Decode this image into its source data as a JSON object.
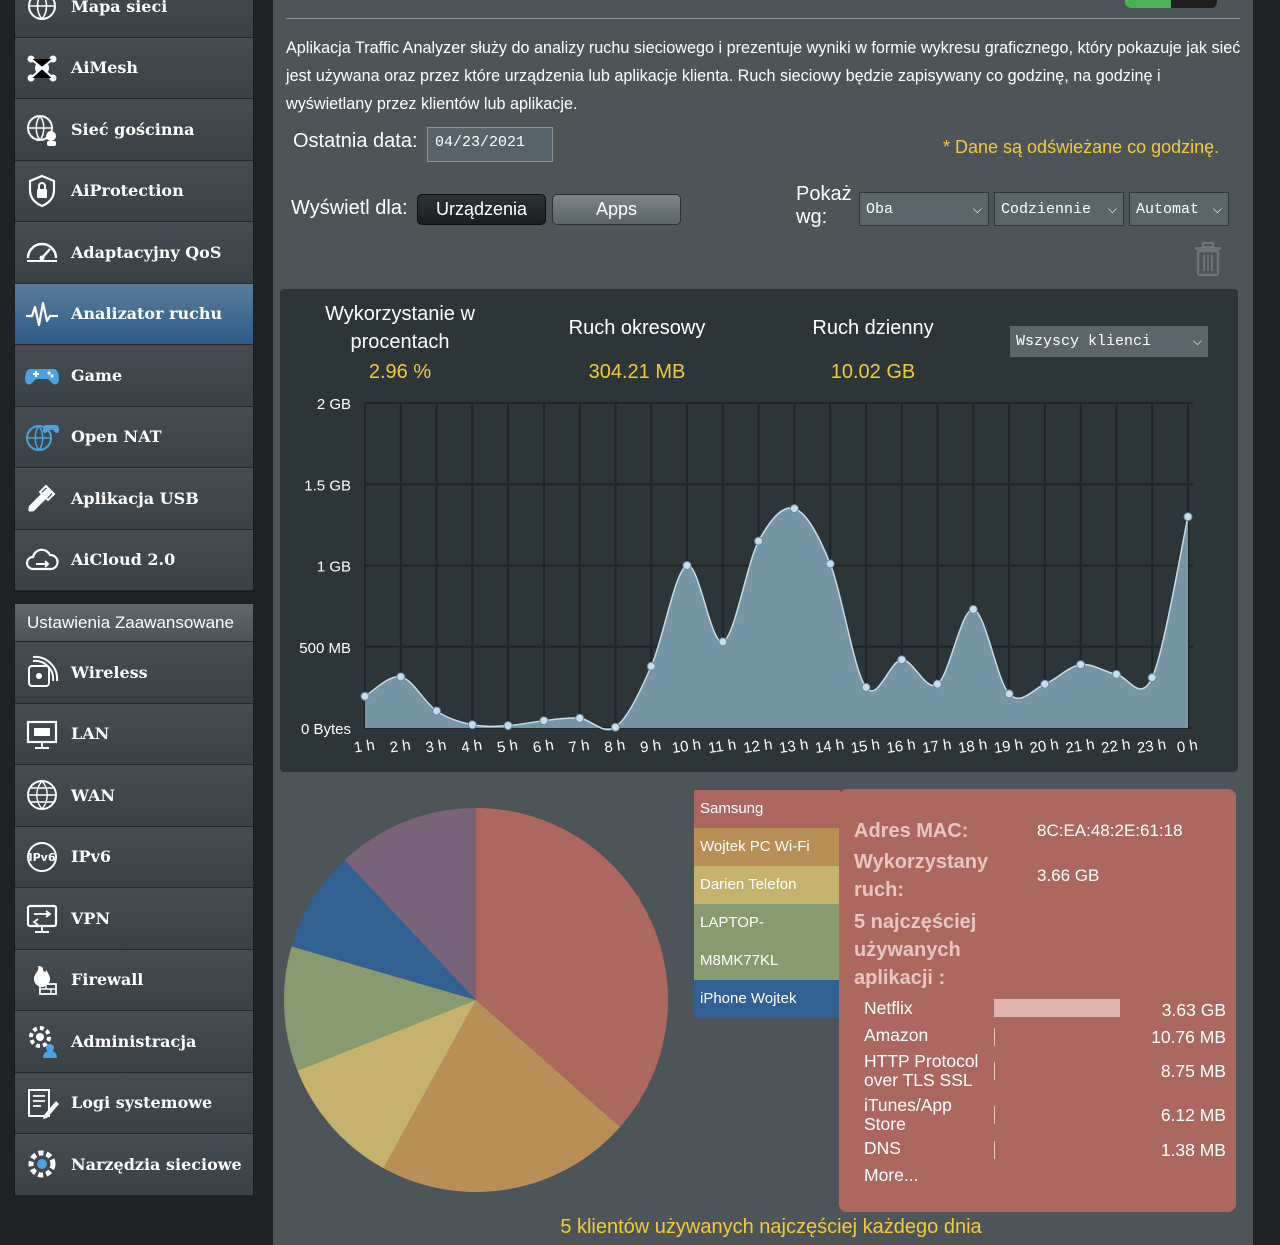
{
  "sidebar": {
    "basic_items": [
      {
        "label": "Mapa sieci",
        "icon": "network-map-icon"
      },
      {
        "label": "AiMesh",
        "icon": "aimesh-icon"
      },
      {
        "label": "Sieć gościnna",
        "icon": "guest-network-icon"
      },
      {
        "label": "AiProtection",
        "icon": "shield-lock-icon"
      },
      {
        "label": "Adaptacyjny QoS",
        "icon": "speedometer-icon"
      },
      {
        "label": "Analizator ruchu",
        "icon": "traffic-wave-icon",
        "active": true
      },
      {
        "label": "Game",
        "icon": "gamepad-icon"
      },
      {
        "label": "Open NAT",
        "icon": "globe-gamepad-icon"
      },
      {
        "label": "Aplikacja USB",
        "icon": "usb-icon"
      },
      {
        "label": "AiCloud 2.0",
        "icon": "cloud-icon"
      }
    ],
    "advanced_header": "Ustawienia Zaawansowane",
    "advanced_items": [
      {
        "label": "Wireless",
        "icon": "wireless-icon"
      },
      {
        "label": "LAN",
        "icon": "lan-icon"
      },
      {
        "label": "WAN",
        "icon": "globe-icon"
      },
      {
        "label": "IPv6",
        "icon": "ipv6-icon"
      },
      {
        "label": "VPN",
        "icon": "vpn-icon"
      },
      {
        "label": "Firewall",
        "icon": "firewall-icon"
      },
      {
        "label": "Administracja",
        "icon": "gear-person-icon"
      },
      {
        "label": "Logi systemowe",
        "icon": "log-icon"
      },
      {
        "label": "Narzędzia sieciowe",
        "icon": "tools-icon"
      }
    ]
  },
  "intro": "Aplikacja Traffic Analyzer służy do analizy ruchu sieciowego i prezentuje wyniki w formie wykresu graficznego, który pokazuje jak sieć jest używana oraz przez które urządzenia lub aplikacje klienta. Ruch sieciowy będzie zapisywany co godzinę, na godzinę i wyświetlany przez klientów lub aplikacje.",
  "controls": {
    "last_date_label": "Ostatnia data:",
    "last_date_value": "04/23/2021",
    "refresh_note": "* Dane są odświeżane co godzinę.",
    "show_for_label": "Wyświetl dla:",
    "btn_devices": "Urządzenia",
    "btn_apps": "Apps",
    "show_by_label_1": "Pokaż",
    "show_by_label_2": "wg:",
    "select_both": "Oba",
    "select_daily": "Codziennie",
    "select_auto": "Automat",
    "trash_icon": "trash-icon"
  },
  "stats": {
    "usage_label_1": "Wykorzystanie w",
    "usage_label_2": "procentach",
    "usage_value": "2.96 %",
    "periodic_label": "Ruch okresowy",
    "periodic_value": "304.21 MB",
    "daily_label": "Ruch dzienny",
    "daily_value": "10.02 GB",
    "clients_select": "Wszyscy klienci"
  },
  "chart_data": {
    "type": "area",
    "y_ticks": [
      "2 GB",
      "1.5 GB",
      "1 GB",
      "500 MB",
      "0 Bytes"
    ],
    "ylim_mb": [
      0,
      2000
    ],
    "x": [
      "1 h",
      "2 h",
      "3 h",
      "4 h",
      "5 h",
      "6 h",
      "7 h",
      "8 h",
      "9 h",
      "10 h",
      "11 h",
      "12 h",
      "13 h",
      "14 h",
      "15 h",
      "16 h",
      "17 h",
      "18 h",
      "19 h",
      "20 h",
      "21 h",
      "22 h",
      "23 h",
      "0 h"
    ],
    "values_mb": [
      195,
      315,
      105,
      20,
      15,
      45,
      60,
      5,
      380,
      1000,
      530,
      1150,
      1350,
      1010,
      250,
      420,
      270,
      730,
      210,
      270,
      390,
      330,
      310,
      1300
    ],
    "fill_color": "#7a9bab",
    "point_color": "#c9dcea"
  },
  "clients": [
    {
      "name": "Samsung",
      "color": "#ac685f",
      "text_color": "#ffffff"
    },
    {
      "name": "Wojtek PC Wi-Fi",
      "color": "#b88f57",
      "text_color": "#ffffff"
    },
    {
      "name": "Darien Telefon",
      "color": "#c5b36d",
      "text_color": "#ffffff"
    },
    {
      "name": "LAPTOP-M8MK77KL",
      "name_line1": "LAPTOP-",
      "name_line2": "M8MK77KL",
      "color": "#889a6f",
      "text_color": "#ffffff"
    },
    {
      "name": "iPhone Wojtek",
      "color": "#336093",
      "text_color": "#ffffff"
    }
  ],
  "pie_data": {
    "type": "pie",
    "slices": [
      {
        "label": "Samsung",
        "value": 36.5,
        "color": "#ac685f"
      },
      {
        "label": "Wojtek PC Wi-Fi",
        "value": 21.5,
        "color": "#b88f57"
      },
      {
        "label": "Darien Telefon",
        "value": 11.0,
        "color": "#c5b36d"
      },
      {
        "label": "LAPTOP-M8MK77KL",
        "value": 10.5,
        "color": "#889a6f"
      },
      {
        "label": "iPhone Wojtek",
        "value": 8.5,
        "color": "#336093"
      },
      {
        "label": "",
        "value": 12.0,
        "color": "#7a6279"
      }
    ]
  },
  "detail": {
    "mac_label": "Adres MAC:",
    "mac_value": "8C:EA:48:2E:61:18",
    "usage_label_1": "Wykorzystany",
    "usage_label_2": "ruch:",
    "usage_value": "3.66 GB",
    "top_apps_label_1": "5 najczęściej",
    "top_apps_label_2": "używanych",
    "top_apps_label_3": "aplikacji :",
    "apps": [
      {
        "name1": "Netflix",
        "name2": "",
        "value": "3.63 GB",
        "fraction": 1.0
      },
      {
        "name1": "Amazon",
        "name2": "",
        "value": "10.76 MB",
        "fraction": 0.003
      },
      {
        "name1": "HTTP Protocol",
        "name2": "over TLS SSL",
        "value": "8.75 MB",
        "fraction": 0.002
      },
      {
        "name1": "iTunes/App",
        "name2": "Store",
        "value": "6.12 MB",
        "fraction": 0.002
      },
      {
        "name1": "DNS",
        "name2": "",
        "value": "1.38 MB",
        "fraction": 0.0004
      }
    ],
    "more": "More..."
  },
  "footer_note": "5 klientów używanych najczęściej każdego dnia"
}
